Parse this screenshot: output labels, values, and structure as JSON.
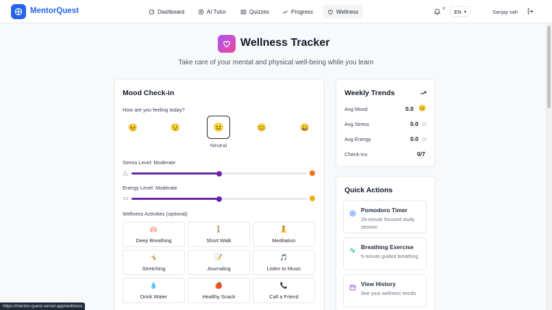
{
  "app": {
    "name": "MentorQuest"
  },
  "nav": [
    {
      "label": "Dashboard",
      "icon": "dashboard-icon"
    },
    {
      "label": "AI Tutor",
      "icon": "ai-icon"
    },
    {
      "label": "Quizzes",
      "icon": "book-icon"
    },
    {
      "label": "Progress",
      "icon": "trend-icon"
    },
    {
      "label": "Wellness",
      "icon": "heart-icon"
    }
  ],
  "header": {
    "language": "EN",
    "user": "Sanjay sah"
  },
  "page": {
    "title": "Wellness Tracker",
    "subtitle": "Take care of your mental and physical well-being while you learn"
  },
  "mood": {
    "title": "Mood Check-in",
    "question": "How are you feeling today?",
    "options": [
      "😣",
      "😟",
      "😐",
      "😊",
      "😄"
    ],
    "selected_label": "Neutral",
    "stress_label": "Stress Level: Moderate",
    "stress_value": 0.5,
    "energy_label": "Energy Level: Moderate",
    "energy_value": 0.5,
    "activities_label": "Wellness Activities (optional)",
    "activities": [
      {
        "label": "Deep Breathing",
        "icon": "🫁"
      },
      {
        "label": "Short Walk",
        "icon": "🚶"
      },
      {
        "label": "Meditation",
        "icon": "🧘"
      },
      {
        "label": "Stretching",
        "icon": "🤸"
      },
      {
        "label": "Journaling",
        "icon": "📝"
      },
      {
        "label": "Listen to Music",
        "icon": "🎵"
      },
      {
        "label": "Drink Water",
        "icon": "💧"
      },
      {
        "label": "Healthy Snack",
        "icon": "🍎"
      },
      {
        "label": "Call a Friend",
        "icon": "📞"
      }
    ]
  },
  "trends": {
    "title": "Weekly Trends",
    "rows": [
      {
        "label": "Avg Mood",
        "value": "0.0"
      },
      {
        "label": "Avg Stress",
        "value": "0.0"
      },
      {
        "label": "Avg Energy",
        "value": "0.0"
      },
      {
        "label": "Check-ins",
        "value": "0/7"
      }
    ]
  },
  "quick_actions": {
    "title": "Quick Actions",
    "items": [
      {
        "title": "Pomodoro Timer",
        "desc": "25-minute focused study session",
        "color": "#3b82f6"
      },
      {
        "title": "Breathing Exercise",
        "desc": "5-minute guided breathing",
        "color": "#10b981"
      },
      {
        "title": "View History",
        "desc": "See your wellness trends",
        "color": "#a855f7"
      }
    ]
  },
  "status_url": "https://mentor-quest.vercel.app/wellness",
  "colors": {
    "accent": "#6b21a8",
    "brand": "#2563eb",
    "stress_dot": "#f97316",
    "energy_dot": "#eab308"
  }
}
